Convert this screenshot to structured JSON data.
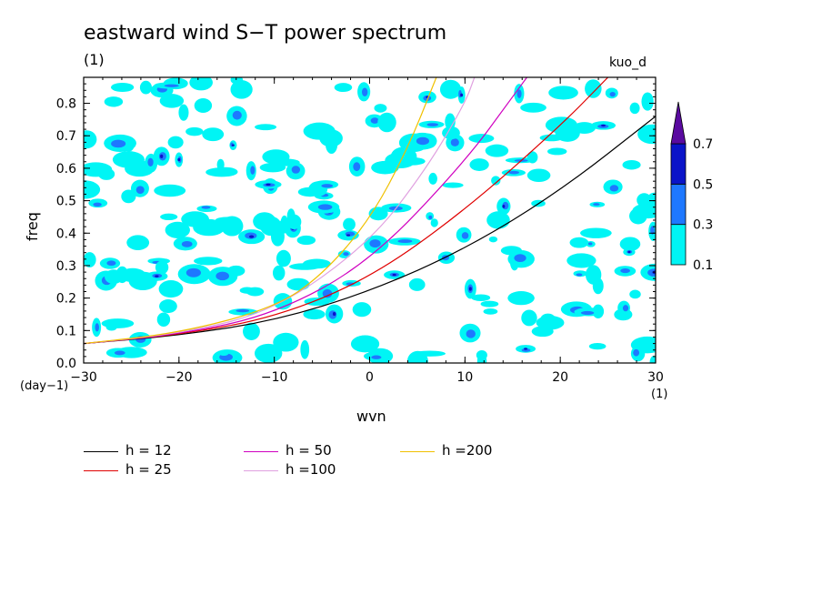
{
  "title": "eastward wind S−T power spectrum",
  "subtitle": "(1)",
  "tag": "kuo_d",
  "chart_data": {
    "type": "heatmap",
    "title": "eastward wind S−T power spectrum",
    "xlabel": "wvn",
    "ylabel": "freq",
    "x_unit": "(1)",
    "y_unit": "(day−1)",
    "xlim": [
      -30,
      30
    ],
    "ylim": [
      0,
      0.88
    ],
    "x_ticks": [
      -30,
      -20,
      -10,
      0,
      10,
      20,
      30
    ],
    "x_tick_labels": [
      "−30",
      "−20",
      "−10",
      "0",
      "10",
      "20",
      "30"
    ],
    "y_ticks": [
      0.0,
      0.1,
      0.2,
      0.3,
      0.4,
      0.5,
      0.6,
      0.7,
      0.8
    ],
    "y_tick_labels": [
      "0.0",
      "0.1",
      "0.2",
      "0.3",
      "0.4",
      "0.5",
      "0.6",
      "0.7",
      "0.8"
    ],
    "contour_levels": [
      0.1,
      0.3,
      0.5,
      0.7
    ],
    "colorbar_labels": [
      "0.1",
      "0.3",
      "0.5",
      "0.7"
    ],
    "level_colors": [
      "#00f5f5",
      "#1e78ff",
      "#0a14c8",
      "#5a0aa0"
    ],
    "contour_colors_named": [
      "cyan",
      "light-blue",
      "blue",
      "purple"
    ],
    "field_description": "noisy patchy power, mostly 0.1–0.3 with scattered 0.3–0.7 spots",
    "dispersion_curves": [
      {
        "name": "h = 12",
        "h": 12,
        "color": "#000000",
        "points": [
          [
            -30,
            0.06
          ],
          [
            -20,
            0.085
          ],
          [
            -10,
            0.13
          ],
          [
            0,
            0.22
          ],
          [
            10,
            0.35
          ],
          [
            20,
            0.53
          ],
          [
            30,
            0.76
          ]
        ]
      },
      {
        "name": "h = 25",
        "h": 25,
        "color": "#e00000",
        "points": [
          [
            -30,
            0.06
          ],
          [
            -20,
            0.087
          ],
          [
            -10,
            0.14
          ],
          [
            0,
            0.26
          ],
          [
            10,
            0.47
          ],
          [
            20,
            0.73
          ],
          [
            25,
            0.88
          ]
        ]
      },
      {
        "name": "h = 50",
        "h": 50,
        "color": "#d000c0",
        "points": [
          [
            -30,
            0.06
          ],
          [
            -20,
            0.088
          ],
          [
            -10,
            0.15
          ],
          [
            0,
            0.31
          ],
          [
            10,
            0.62
          ],
          [
            15,
            0.82
          ],
          [
            16.5,
            0.88
          ]
        ]
      },
      {
        "name": "h =100",
        "h": 100,
        "color": "#e0a0e0",
        "points": [
          [
            -30,
            0.06
          ],
          [
            -20,
            0.09
          ],
          [
            -10,
            0.16
          ],
          [
            0,
            0.37
          ],
          [
            6,
            0.6
          ],
          [
            10,
            0.8
          ],
          [
            11,
            0.88
          ]
        ]
      },
      {
        "name": "h =200",
        "h": 200,
        "color": "#f0c000",
        "points": [
          [
            -30,
            0.06
          ],
          [
            -20,
            0.092
          ],
          [
            -10,
            0.17
          ],
          [
            -5,
            0.27
          ],
          [
            0,
            0.44
          ],
          [
            4,
            0.66
          ],
          [
            7,
            0.88
          ]
        ]
      }
    ],
    "grid": false,
    "legend_position": "bottom"
  }
}
